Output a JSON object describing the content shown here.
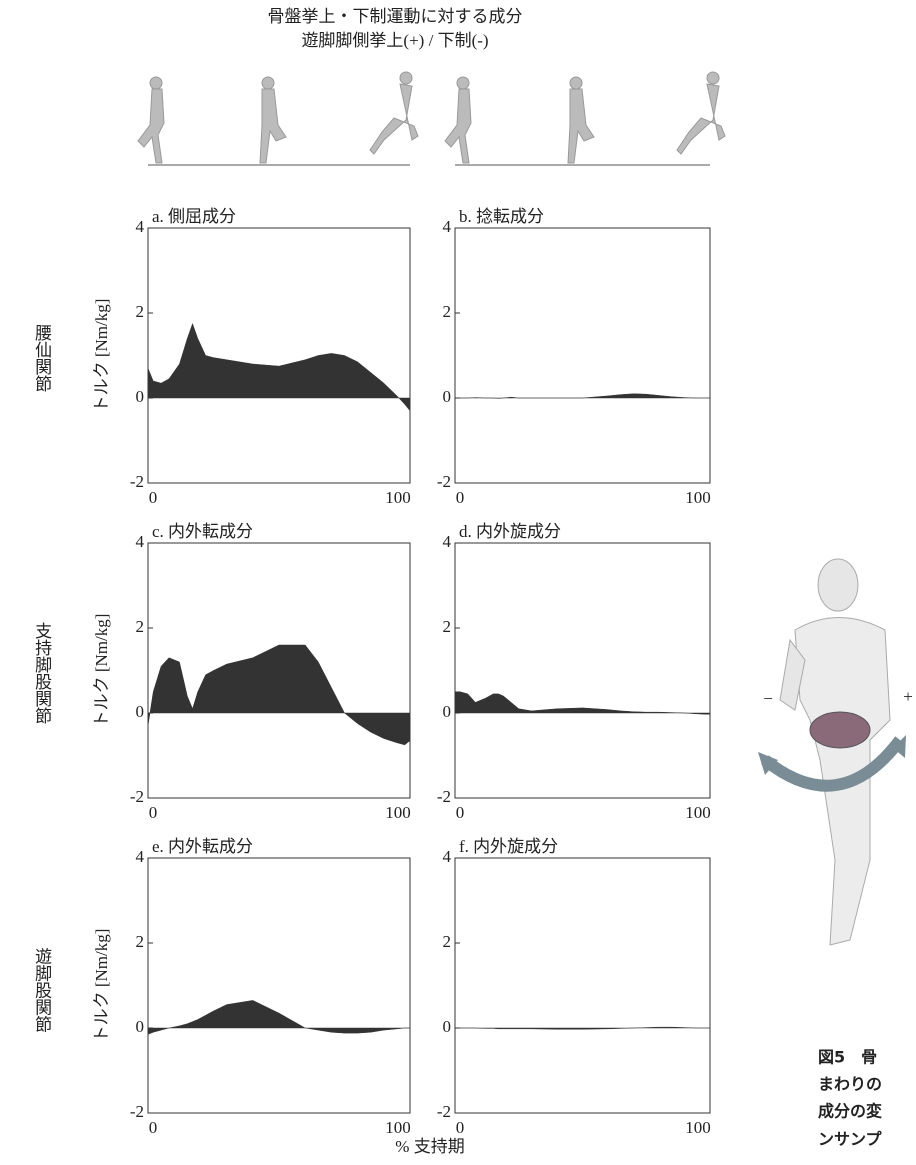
{
  "figure_title": [
    "骨盤挙上・下制運動に対する成分",
    "遊脚脚側挙上(+) / 下制(-)"
  ],
  "row_labels": [
    "腰仙関節",
    "支持脚股関節",
    "遊脚股関節"
  ],
  "x_label": "% 支持期",
  "illustration_signs": [
    "−",
    "+"
  ],
  "caption": [
    "図5　骨",
    "まわりの",
    "成分の変",
    "ンサンプ"
  ],
  "chart_data": [
    {
      "type": "area",
      "title": "a. 側屈成分",
      "ylabel": "トルク [Nm/kg]",
      "color": "#333333",
      "x": [
        0,
        2,
        5,
        8,
        12,
        15,
        17,
        19,
        22,
        25,
        30,
        40,
        50,
        60,
        65,
        70,
        75,
        80,
        85,
        90,
        95,
        98,
        100
      ],
      "values": [
        0.7,
        0.4,
        0.35,
        0.45,
        0.8,
        1.4,
        1.75,
        1.4,
        1.0,
        0.95,
        0.9,
        0.8,
        0.75,
        0.9,
        1.0,
        1.05,
        1.0,
        0.85,
        0.6,
        0.35,
        0.05,
        -0.15,
        -0.3
      ],
      "xlim": [
        0,
        100
      ],
      "ylim": [
        -2,
        4
      ],
      "xticks": [
        0,
        100
      ],
      "yticks": [
        4,
        2,
        0,
        -2
      ]
    },
    {
      "type": "area",
      "title": "b. 捻転成分",
      "color": "#333333",
      "x": [
        0,
        2,
        5,
        8,
        12,
        15,
        17,
        19,
        22,
        25,
        30,
        40,
        50,
        60,
        65,
        70,
        75,
        80,
        85,
        90,
        95,
        98,
        100
      ],
      "values": [
        0,
        0,
        0,
        0.01,
        0,
        0,
        -0.01,
        0,
        0.02,
        0,
        0,
        0,
        0,
        0.05,
        0.08,
        0.1,
        0.09,
        0.06,
        0.03,
        0.01,
        0,
        0,
        0
      ],
      "xlim": [
        0,
        100
      ],
      "ylim": [
        -2,
        4
      ],
      "xticks": [
        0,
        100
      ],
      "yticks": [
        4,
        2,
        0,
        -2
      ]
    },
    {
      "type": "area",
      "title": "c. 内外転成分",
      "ylabel": "トルク [Nm/kg]",
      "color": "#333333",
      "x": [
        0,
        2,
        5,
        8,
        12,
        15,
        17,
        19,
        22,
        25,
        30,
        40,
        50,
        60,
        65,
        70,
        75,
        80,
        85,
        90,
        95,
        98,
        100
      ],
      "values": [
        -0.3,
        0.5,
        1.1,
        1.3,
        1.2,
        0.4,
        0.1,
        0.5,
        0.9,
        1.0,
        1.15,
        1.3,
        1.6,
        1.6,
        1.2,
        0.6,
        0.0,
        -0.25,
        -0.45,
        -0.6,
        -0.7,
        -0.75,
        -0.65
      ],
      "xlim": [
        0,
        100
      ],
      "ylim": [
        -2,
        4
      ],
      "xticks": [
        0,
        100
      ],
      "yticks": [
        4,
        2,
        0,
        -2
      ]
    },
    {
      "type": "area",
      "title": "d. 内外旋成分",
      "color": "#333333",
      "x": [
        0,
        2,
        5,
        8,
        12,
        15,
        17,
        19,
        22,
        25,
        30,
        40,
        50,
        60,
        65,
        70,
        75,
        80,
        85,
        90,
        95,
        98,
        100
      ],
      "values": [
        0.5,
        0.5,
        0.45,
        0.25,
        0.35,
        0.45,
        0.45,
        0.4,
        0.25,
        0.1,
        0.05,
        0.1,
        0.12,
        0.08,
        0.05,
        0.03,
        0.02,
        0.02,
        0.01,
        0.0,
        -0.02,
        -0.03,
        -0.03
      ],
      "xlim": [
        0,
        100
      ],
      "ylim": [
        -2,
        4
      ],
      "xticks": [
        0,
        100
      ],
      "yticks": [
        4,
        2,
        0,
        -2
      ]
    },
    {
      "type": "area",
      "title": "e. 内外転成分",
      "ylabel": "トルク [Nm/kg]",
      "color": "#333333",
      "x": [
        0,
        2,
        5,
        8,
        12,
        15,
        17,
        19,
        22,
        25,
        30,
        40,
        50,
        60,
        65,
        70,
        75,
        80,
        85,
        90,
        95,
        98,
        100
      ],
      "values": [
        -0.15,
        -0.1,
        -0.05,
        0.0,
        0.05,
        0.1,
        0.15,
        0.2,
        0.3,
        0.4,
        0.55,
        0.65,
        0.35,
        0.0,
        -0.05,
        -0.1,
        -0.12,
        -0.12,
        -0.1,
        -0.05,
        -0.02,
        0,
        0
      ],
      "xlim": [
        0,
        100
      ],
      "ylim": [
        -2,
        4
      ],
      "xticks": [
        0,
        100
      ],
      "yticks": [
        4,
        2,
        0,
        -2
      ]
    },
    {
      "type": "area",
      "title": "f. 内外旋成分",
      "color": "#333333",
      "x": [
        0,
        2,
        5,
        8,
        12,
        15,
        17,
        19,
        22,
        25,
        30,
        40,
        50,
        60,
        65,
        70,
        75,
        80,
        85,
        90,
        95,
        98,
        100
      ],
      "values": [
        0,
        0,
        0,
        0,
        -0.01,
        -0.01,
        -0.02,
        -0.02,
        -0.02,
        -0.02,
        -0.02,
        -0.03,
        -0.03,
        -0.02,
        -0.01,
        0,
        0.01,
        0.02,
        0.02,
        0.01,
        0,
        0,
        0
      ],
      "xlim": [
        0,
        100
      ],
      "ylim": [
        -2,
        4
      ],
      "xticks": [
        0,
        100
      ],
      "yticks": [
        4,
        2,
        0,
        -2
      ]
    }
  ]
}
